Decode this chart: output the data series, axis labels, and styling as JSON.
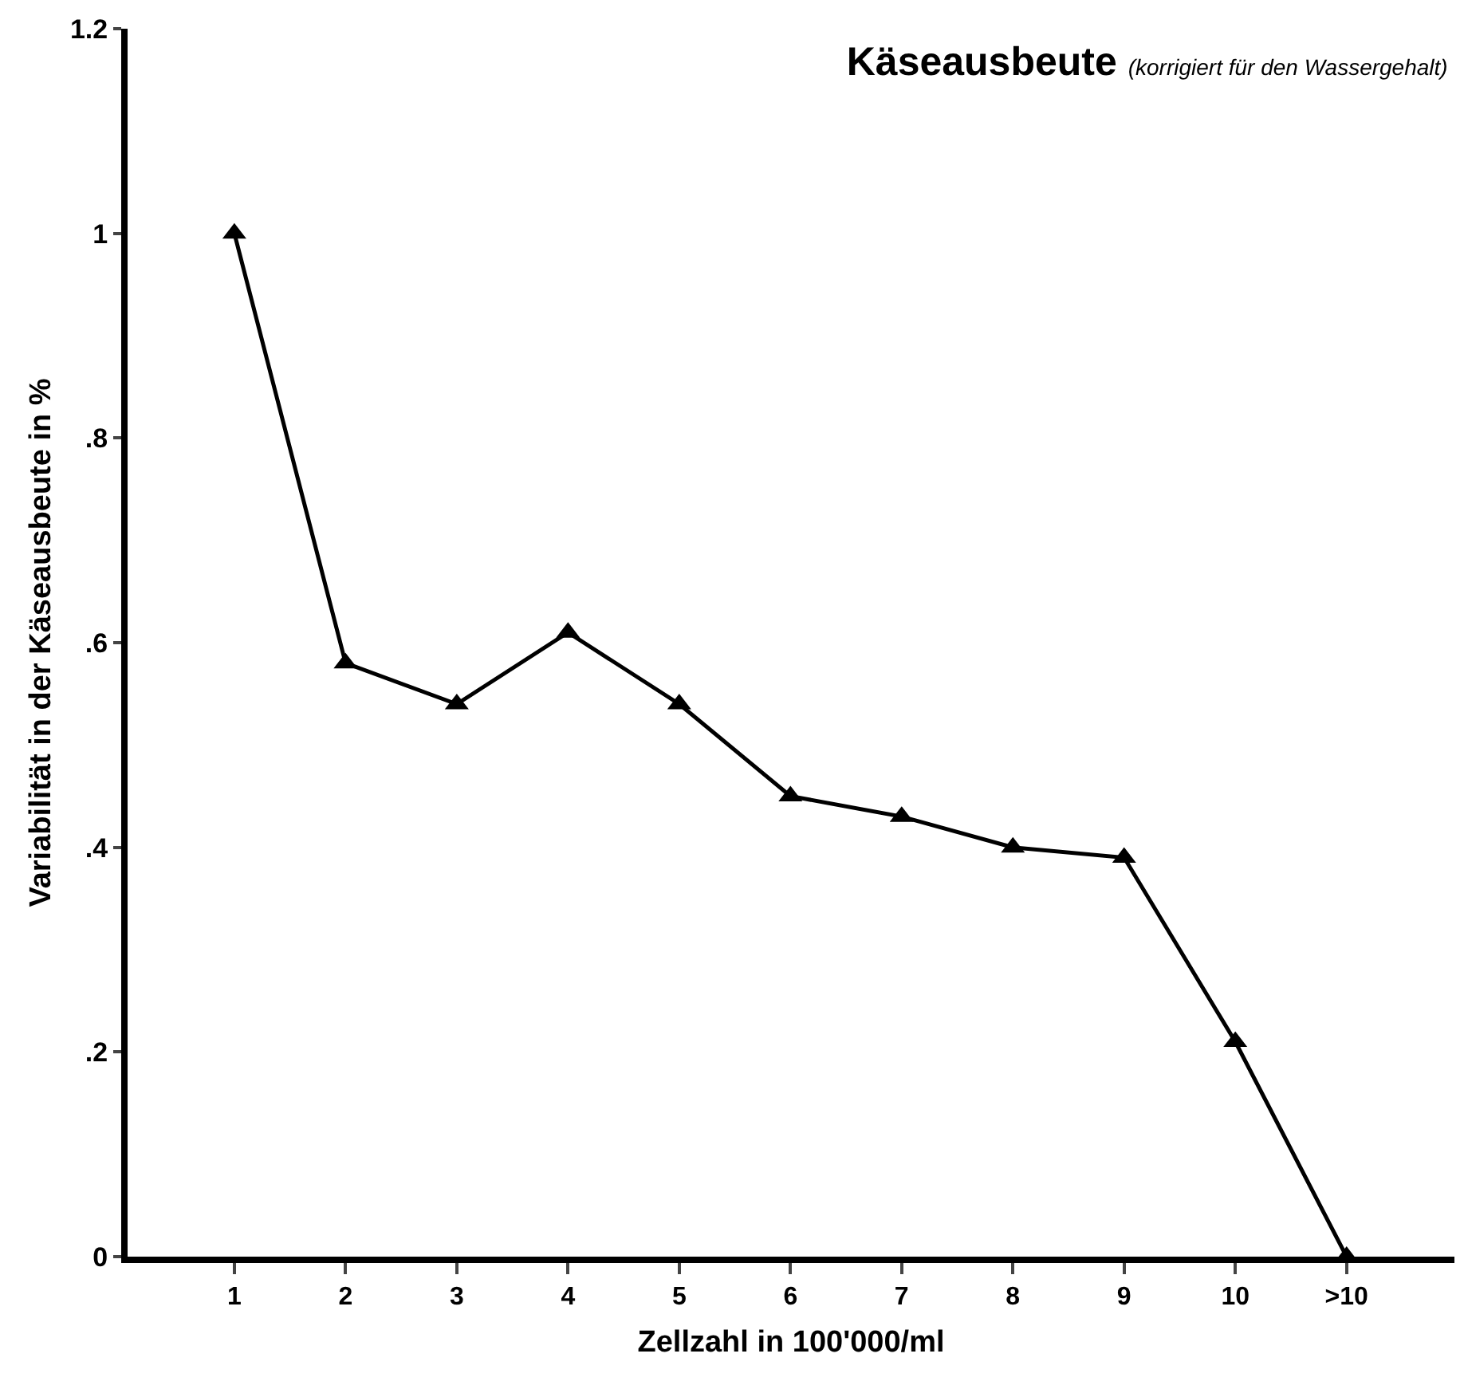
{
  "chart_data": {
    "type": "line",
    "title": "Käseausbeute",
    "subtitle": "(korrigiert für den Wassergehalt)",
    "xlabel": "Zellzahl in 100'000/ml",
    "ylabel": "Variabilität in der Käseausbeute in %",
    "categories": [
      "1",
      "2",
      "3",
      "4",
      "5",
      "6",
      "7",
      "8",
      "9",
      "10",
      ">10"
    ],
    "series": [
      {
        "color": "#000000",
        "values": [
          1.0,
          0.58,
          0.54,
          0.61,
          0.54,
          0.45,
          0.43,
          0.4,
          0.39,
          0.21,
          0
        ]
      }
    ],
    "ylim": [
      0,
      1.2
    ],
    "yticks": [
      0,
      {
        "value": 0.2,
        "label": ".2"
      },
      {
        "value": 0.4,
        "label": ".4"
      },
      {
        "value": 0.6,
        "label": ".6"
      },
      {
        "value": 0.8,
        "label": ".8"
      },
      1,
      1.2
    ],
    "grid": false,
    "marker": "triangle",
    "line_style": "solid"
  }
}
